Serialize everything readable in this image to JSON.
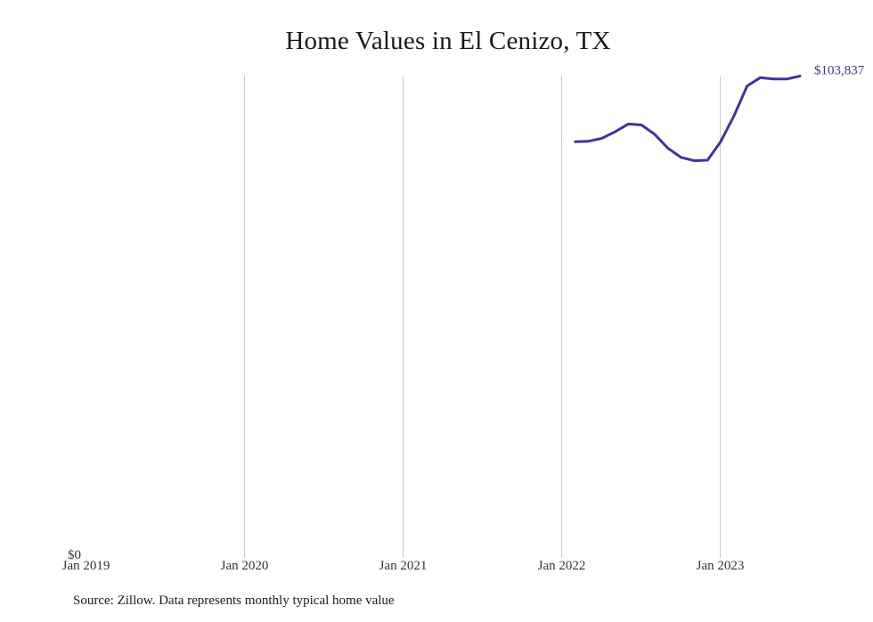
{
  "chart_data": {
    "type": "line",
    "title": "Home Values in El Cenizo, TX",
    "source": "Source: Zillow. Data represents monthly typical home value",
    "y_tick_label": "$0",
    "end_value_label": "$103,837",
    "line_color": "#3d35a0",
    "grid_color": "#c8c8c8",
    "xlim": [
      "2019-01",
      "2023-10"
    ],
    "ylim": [
      0,
      104500
    ],
    "x_ticks": [
      {
        "date": "2019-01",
        "label": "Jan 2019"
      },
      {
        "date": "2020-01",
        "label": "Jan 2020"
      },
      {
        "date": "2021-01",
        "label": "Jan 2021"
      },
      {
        "date": "2022-01",
        "label": "Jan 2022"
      },
      {
        "date": "2023-01",
        "label": "Jan 2023"
      }
    ],
    "grid": "vertical",
    "series": [
      {
        "values": [
          {
            "x": "2022-02",
            "y": 89700
          },
          {
            "x": "2022-03",
            "y": 89800
          },
          {
            "x": "2022-04",
            "y": 90400
          },
          {
            "x": "2022-05",
            "y": 91800
          },
          {
            "x": "2022-06",
            "y": 93500
          },
          {
            "x": "2022-07",
            "y": 93300
          },
          {
            "x": "2022-08",
            "y": 91300
          },
          {
            "x": "2022-09",
            "y": 88300
          },
          {
            "x": "2022-10",
            "y": 86300
          },
          {
            "x": "2022-11",
            "y": 85600
          },
          {
            "x": "2022-12",
            "y": 85700
          },
          {
            "x": "2023-01",
            "y": 89700
          },
          {
            "x": "2023-02",
            "y": 95200
          },
          {
            "x": "2023-03",
            "y": 101700
          },
          {
            "x": "2023-04",
            "y": 103500
          },
          {
            "x": "2023-05",
            "y": 103200
          },
          {
            "x": "2023-06",
            "y": 103200
          },
          {
            "x": "2023-07",
            "y": 103837
          }
        ]
      }
    ]
  }
}
